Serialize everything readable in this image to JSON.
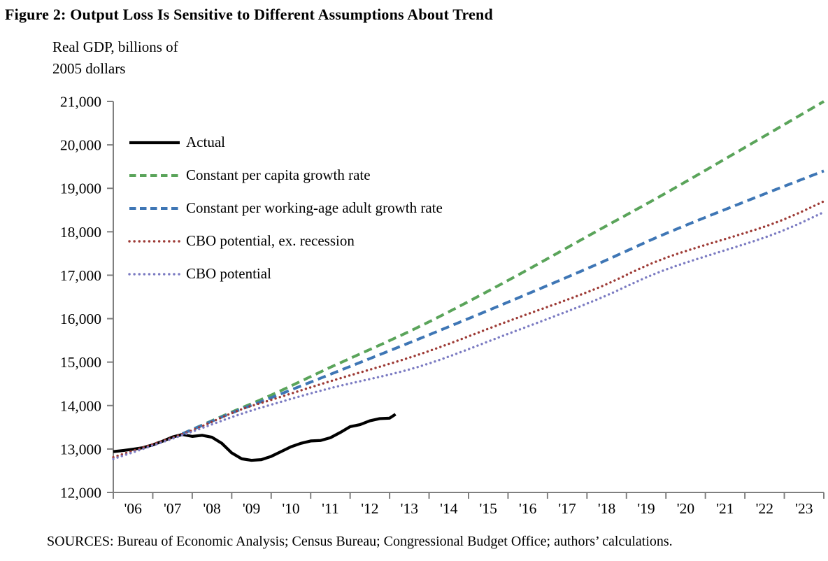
{
  "figure": {
    "title": "Figure 2: Output Loss Is Sensitive to Different Assumptions About Trend",
    "y_axis_title": "Real GDP, billions of\n2005 dollars",
    "sources": "SOURCES: Bureau of Economic Analysis; Census Bureau; Congressional Budget Office; authors’ calculations."
  },
  "chart_data": {
    "type": "line",
    "title": "Figure 2: Output Loss Is Sensitive to Different Assumptions About Trend",
    "ylabel": "Real GDP, billions of 2005 dollars",
    "xlabel": "",
    "grid": false,
    "legend_position": "upper-left-inside",
    "ylim": [
      12000,
      21000
    ],
    "x_range": [
      2006,
      2024
    ],
    "axis_color": "#7f7f7f",
    "y_ticks": [
      {
        "value": 12000,
        "label": "12,000"
      },
      {
        "value": 13000,
        "label": "13,000"
      },
      {
        "value": 14000,
        "label": "14,000"
      },
      {
        "value": 15000,
        "label": "15,000"
      },
      {
        "value": 16000,
        "label": "16,000"
      },
      {
        "value": 17000,
        "label": "17,000"
      },
      {
        "value": 18000,
        "label": "18,000"
      },
      {
        "value": 19000,
        "label": "19,000"
      },
      {
        "value": 20000,
        "label": "20,000"
      },
      {
        "value": 21000,
        "label": "21,000"
      }
    ],
    "x_tick_labels": [
      "'06",
      "'07",
      "'08",
      "'09",
      "'10",
      "'11",
      "'12",
      "'13",
      "'14",
      "'15",
      "'16",
      "'17",
      "'18",
      "'19",
      "'20",
      "'21",
      "'22",
      "'23"
    ],
    "series": [
      {
        "name": "Actual",
        "color": "#000000",
        "width": 4.2,
        "style": "solid",
        "smooth": false,
        "points": [
          [
            2006.0,
            12940
          ],
          [
            2006.25,
            12965
          ],
          [
            2006.5,
            12995
          ],
          [
            2006.75,
            13030
          ],
          [
            2007.0,
            13095
          ],
          [
            2007.25,
            13180
          ],
          [
            2007.5,
            13275
          ],
          [
            2007.75,
            13335
          ],
          [
            2008.0,
            13290
          ],
          [
            2008.25,
            13315
          ],
          [
            2008.5,
            13270
          ],
          [
            2008.75,
            13130
          ],
          [
            2009.0,
            12910
          ],
          [
            2009.25,
            12775
          ],
          [
            2009.5,
            12740
          ],
          [
            2009.75,
            12755
          ],
          [
            2010.0,
            12830
          ],
          [
            2010.25,
            12940
          ],
          [
            2010.5,
            13050
          ],
          [
            2010.75,
            13130
          ],
          [
            2011.0,
            13185
          ],
          [
            2011.25,
            13195
          ],
          [
            2011.5,
            13260
          ],
          [
            2011.75,
            13380
          ],
          [
            2012.0,
            13515
          ],
          [
            2012.25,
            13560
          ],
          [
            2012.5,
            13650
          ],
          [
            2012.75,
            13700
          ],
          [
            2013.0,
            13710
          ],
          [
            2013.15,
            13800
          ]
        ]
      },
      {
        "name": "Constant per capita growth rate",
        "color": "#5aa45a",
        "width": 4,
        "style": "dashed",
        "smooth": true,
        "points": [
          [
            2007.75,
            13350
          ],
          [
            2009,
            13850
          ],
          [
            2010,
            14240
          ],
          [
            2011.5,
            14880
          ],
          [
            2013.76,
            15820
          ],
          [
            2016,
            16880
          ],
          [
            2018.2,
            17990
          ],
          [
            2019.9,
            18840
          ],
          [
            2022,
            19940
          ],
          [
            2024,
            21000
          ]
        ]
      },
      {
        "name": "Constant per working-age adult growth rate",
        "color": "#3e76b5",
        "width": 4,
        "style": "dashed",
        "smooth": true,
        "points": [
          [
            2007.75,
            13350
          ],
          [
            2009,
            13830
          ],
          [
            2010,
            14180
          ],
          [
            2011.5,
            14720
          ],
          [
            2013.76,
            15540
          ],
          [
            2016,
            16380
          ],
          [
            2018.2,
            17230
          ],
          [
            2020,
            17960
          ],
          [
            2022.3,
            18800
          ],
          [
            2024,
            19400
          ]
        ]
      },
      {
        "name": "CBO potential, ex. recession",
        "color": "#9d3a35",
        "width": 3.4,
        "style": "dotted",
        "smooth": true,
        "points": [
          [
            2006,
            12810
          ],
          [
            2007,
            13110
          ],
          [
            2008,
            13430
          ],
          [
            2009.15,
            13880
          ],
          [
            2010,
            14130
          ],
          [
            2011.5,
            14560
          ],
          [
            2013.76,
            15180
          ],
          [
            2016,
            15940
          ],
          [
            2018.2,
            16680
          ],
          [
            2020,
            17400
          ],
          [
            2022.6,
            18150
          ],
          [
            2024,
            18700
          ]
        ]
      },
      {
        "name": "CBO potential",
        "color": "#7b7bc2",
        "width": 3.4,
        "style": "dotted",
        "smooth": true,
        "points": [
          [
            2006,
            12770
          ],
          [
            2007,
            13080
          ],
          [
            2008,
            13400
          ],
          [
            2009.15,
            13780
          ],
          [
            2010,
            14020
          ],
          [
            2011.5,
            14400
          ],
          [
            2013.76,
            14900
          ],
          [
            2016,
            15650
          ],
          [
            2018.2,
            16420
          ],
          [
            2020,
            17130
          ],
          [
            2022.6,
            17900
          ],
          [
            2024,
            18450
          ]
        ]
      }
    ]
  }
}
